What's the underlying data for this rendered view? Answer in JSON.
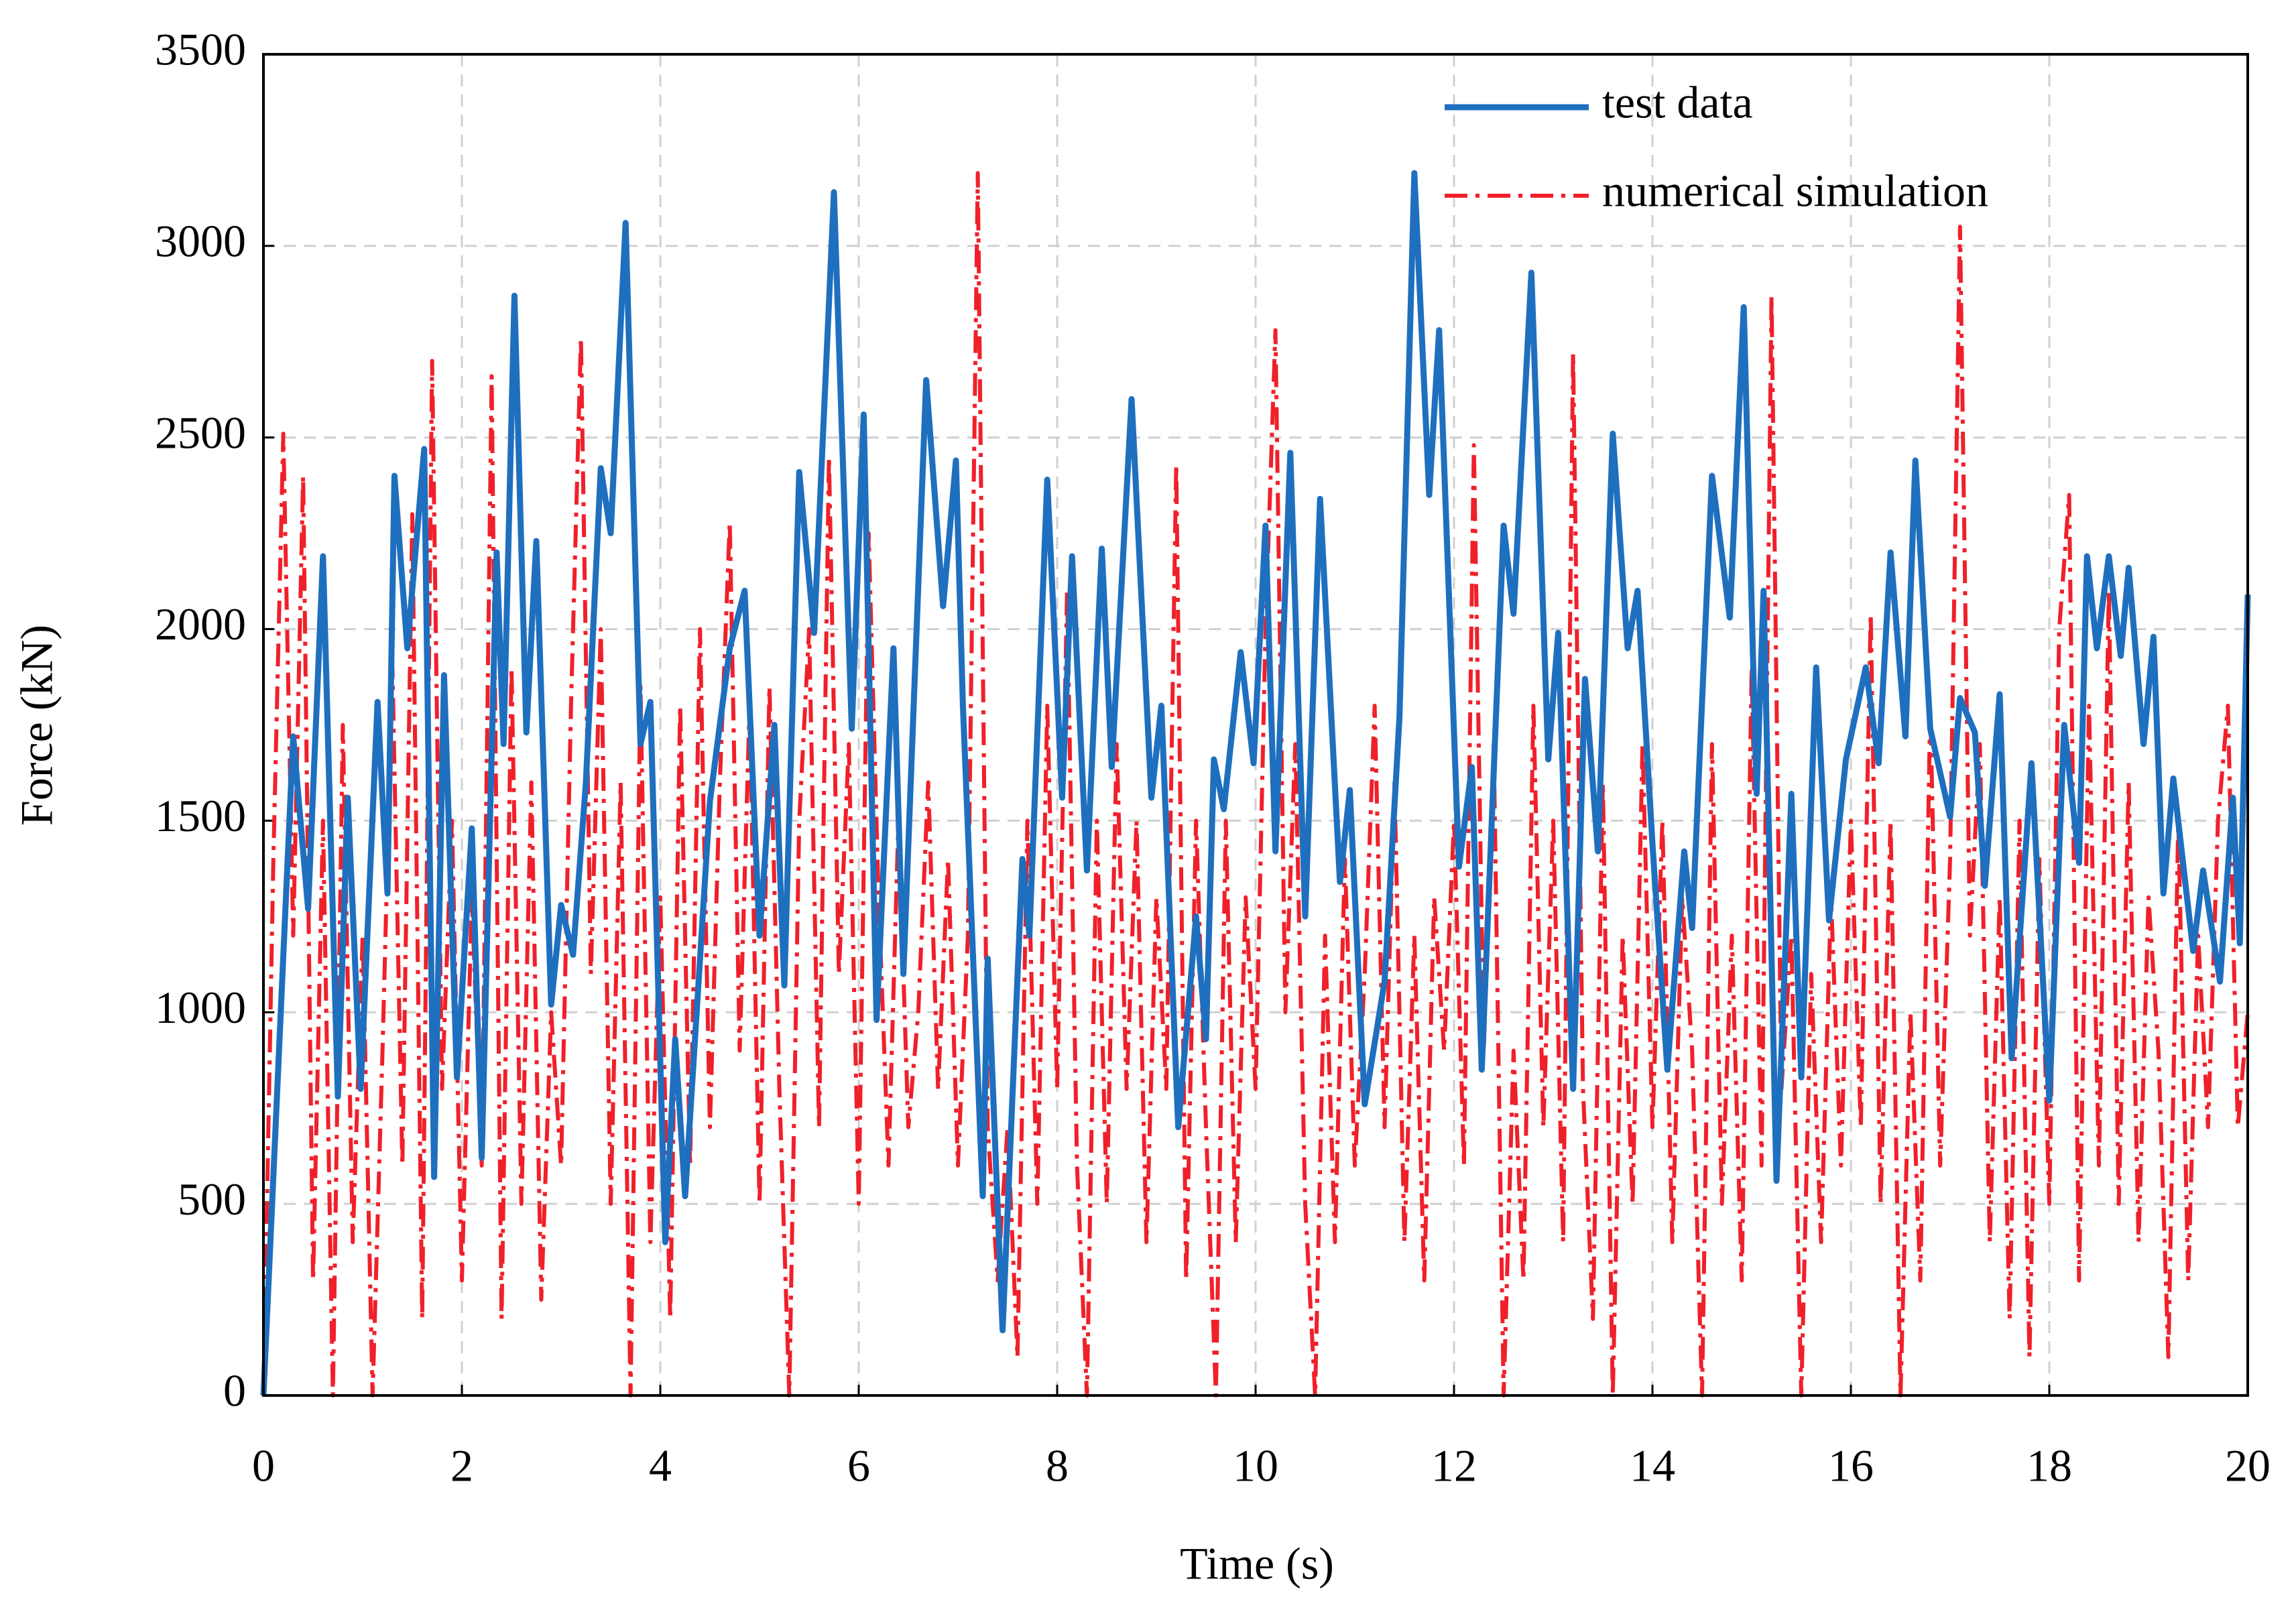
{
  "chart_data": {
    "type": "line",
    "x_label": "Time (s)",
    "y_label": "Force (kN)",
    "xlim": [
      0,
      20
    ],
    "xticks": [
      0,
      2,
      4,
      6,
      8,
      10,
      12,
      14,
      16,
      18,
      20
    ],
    "ylim": [
      0,
      3500
    ],
    "yticks": [
      0,
      500,
      1000,
      1500,
      2000,
      2500,
      3000,
      3500
    ],
    "grid": true,
    "legend": "upper right",
    "series": [
      {
        "name": "test data",
        "color": "#1f6fbf",
        "style": "solid",
        "x": [
          0,
          0.3,
          0.45,
          0.6,
          0.75,
          0.85,
          0.98,
          1.15,
          1.25,
          1.32,
          1.45,
          1.62,
          1.72,
          1.82,
          1.95,
          2.1,
          2.2,
          2.35,
          2.42,
          2.53,
          2.65,
          2.75,
          2.9,
          3.0,
          3.12,
          3.25,
          3.4,
          3.5,
          3.65,
          3.8,
          3.9,
          4.05,
          4.15,
          4.25,
          4.5,
          4.7,
          4.85,
          5.0,
          5.15,
          5.25,
          5.4,
          5.55,
          5.75,
          5.93,
          6.05,
          6.18,
          6.35,
          6.45,
          6.68,
          6.85,
          6.98,
          7.05,
          7.25,
          7.3,
          7.45,
          7.65,
          7.72,
          7.9,
          8.05,
          8.15,
          8.3,
          8.45,
          8.55,
          8.75,
          8.95,
          9.05,
          9.22,
          9.4,
          9.5,
          9.58,
          9.68,
          9.85,
          9.98,
          10.1,
          10.2,
          10.35,
          10.5,
          10.65,
          10.85,
          10.95,
          11.1,
          11.3,
          11.45,
          11.6,
          11.75,
          11.85,
          12.05,
          12.18,
          12.28,
          12.5,
          12.6,
          12.78,
          12.95,
          13.05,
          13.2,
          13.32,
          13.45,
          13.6,
          13.75,
          13.85,
          14.0,
          14.15,
          14.32,
          14.4,
          14.6,
          14.78,
          14.92,
          15.05,
          15.12,
          15.25,
          15.4,
          15.5,
          15.65,
          15.78,
          15.95,
          16.15,
          16.28,
          16.4,
          16.55,
          16.65,
          16.8,
          17.0,
          17.1,
          17.25,
          17.35,
          17.5,
          17.62,
          17.82,
          18.0,
          18.15,
          18.3,
          18.38,
          18.48,
          18.6,
          18.72,
          18.8,
          18.95,
          19.05,
          19.15,
          19.25,
          19.45,
          19.55,
          19.72,
          19.85,
          19.92,
          20
        ],
        "values": [
          0,
          1720,
          1270,
          2190,
          780,
          1560,
          800,
          1810,
          1310,
          2400,
          1950,
          2470,
          570,
          1880,
          830,
          1480,
          620,
          2200,
          1700,
          2870,
          1730,
          2230,
          1020,
          1280,
          1150,
          1600,
          2420,
          2250,
          3060,
          1700,
          1810,
          400,
          930,
          520,
          1550,
          1950,
          2100,
          1200,
          1750,
          1070,
          2410,
          1990,
          3140,
          1740,
          2560,
          980,
          1950,
          1100,
          2650,
          2060,
          2440,
          1800,
          520,
          1140,
          170,
          1400,
          1200,
          2390,
          1560,
          2190,
          1370,
          2210,
          1640,
          2600,
          1560,
          1800,
          700,
          1250,
          930,
          1660,
          1530,
          1940,
          1650,
          2270,
          1420,
          2460,
          1250,
          2340,
          1340,
          1580,
          760,
          1080,
          1770,
          3190,
          2350,
          2780,
          1380,
          1640,
          850,
          2270,
          2040,
          2930,
          1660,
          1990,
          800,
          1870,
          1420,
          2510,
          1950,
          2100,
          1440,
          850,
          1420,
          1220,
          2400,
          2030,
          2840,
          1570,
          2100,
          560,
          1570,
          830,
          1900,
          1240,
          1660,
          1900,
          1650,
          2200,
          1720,
          2440,
          1740,
          1510,
          1820,
          1730,
          1330,
          1830,
          880,
          1650,
          770,
          1750,
          1390,
          2190,
          1950,
          2190,
          1930,
          2160,
          1700,
          1980,
          1310,
          1610,
          1160,
          1370,
          1080,
          1560,
          1180,
          2090
        ]
      },
      {
        "name": "numerical simulation",
        "color": "#f0202a",
        "style": "dashdot",
        "x": [
          0,
          0.1,
          0.2,
          0.3,
          0.4,
          0.5,
          0.6,
          0.7,
          0.8,
          0.9,
          1,
          1.1,
          1.2,
          1.3,
          1.4,
          1.5,
          1.6,
          1.7,
          1.8,
          1.9,
          2,
          2.1,
          2.2,
          2.3,
          2.4,
          2.5,
          2.6,
          2.7,
          2.8,
          2.9,
          3,
          3.1,
          3.2,
          3.3,
          3.4,
          3.5,
          3.6,
          3.7,
          3.8,
          3.9,
          4,
          4.1,
          4.2,
          4.3,
          4.4,
          4.5,
          4.6,
          4.7,
          4.8,
          4.9,
          5,
          5.1,
          5.2,
          5.3,
          5.4,
          5.5,
          5.6,
          5.7,
          5.8,
          5.9,
          6,
          6.1,
          6.2,
          6.3,
          6.4,
          6.5,
          6.6,
          6.7,
          6.8,
          6.9,
          7,
          7.1,
          7.2,
          7.3,
          7.4,
          7.5,
          7.6,
          7.7,
          7.8,
          7.9,
          8,
          8.1,
          8.2,
          8.3,
          8.4,
          8.5,
          8.6,
          8.7,
          8.8,
          8.9,
          9,
          9.1,
          9.2,
          9.3,
          9.4,
          9.5,
          9.6,
          9.7,
          9.8,
          9.9,
          10,
          10.1,
          10.2,
          10.3,
          10.4,
          10.5,
          10.6,
          10.7,
          10.8,
          10.9,
          11,
          11.1,
          11.2,
          11.3,
          11.4,
          11.5,
          11.6,
          11.7,
          11.8,
          11.9,
          12,
          12.1,
          12.2,
          12.3,
          12.4,
          12.5,
          12.6,
          12.7,
          12.8,
          12.9,
          13,
          13.1,
          13.2,
          13.3,
          13.4,
          13.5,
          13.6,
          13.7,
          13.8,
          13.9,
          14,
          14.1,
          14.2,
          14.3,
          14.4,
          14.5,
          14.6,
          14.7,
          14.8,
          14.9,
          15,
          15.1,
          15.2,
          15.3,
          15.4,
          15.5,
          15.6,
          15.7,
          15.8,
          15.9,
          16,
          16.1,
          16.2,
          16.3,
          16.4,
          16.5,
          16.6,
          16.7,
          16.8,
          16.9,
          17,
          17.1,
          17.2,
          17.3,
          17.4,
          17.5,
          17.6,
          17.7,
          17.8,
          17.9,
          18,
          18.1,
          18.2,
          18.3,
          18.4,
          18.5,
          18.6,
          18.7,
          18.8,
          18.9,
          19,
          19.1,
          19.2,
          19.3,
          19.4,
          19.5,
          19.6,
          19.7,
          19.8,
          19.9,
          20
        ],
        "values": [
          0,
          1400,
          2510,
          1200,
          2400,
          300,
          1500,
          0,
          1750,
          400,
          1200,
          0,
          900,
          1900,
          600,
          2300,
          200,
          2700,
          800,
          1500,
          300,
          1300,
          600,
          2660,
          200,
          1900,
          500,
          1600,
          250,
          1000,
          600,
          1800,
          2760,
          1100,
          2000,
          500,
          1600,
          0,
          1850,
          400,
          1300,
          200,
          1800,
          600,
          2000,
          700,
          1600,
          2280,
          900,
          1800,
          500,
          1850,
          800,
          0,
          1500,
          2000,
          700,
          2450,
          1100,
          1700,
          500,
          2250,
          1300,
          600,
          1500,
          700,
          1000,
          1600,
          800,
          1400,
          600,
          1200,
          3190,
          700,
          300,
          700,
          100,
          1500,
          500,
          1800,
          800,
          2100,
          600,
          0,
          1500,
          500,
          1700,
          800,
          1500,
          400,
          1300,
          800,
          2430,
          300,
          1500,
          700,
          0,
          1500,
          400,
          1300,
          800,
          2000,
          2780,
          1000,
          1700,
          500,
          0,
          1200,
          400,
          1400,
          600,
          1100,
          1800,
          700,
          1600,
          400,
          1200,
          300,
          1300,
          900,
          1500,
          600,
          2480,
          900,
          1700,
          0,
          900,
          300,
          1800,
          700,
          1500,
          400,
          2720,
          800,
          200,
          1600,
          0,
          1200,
          500,
          1700,
          700,
          1500,
          400,
          1300,
          900,
          0,
          1700,
          500,
          1200,
          300,
          1900,
          600,
          2870,
          800,
          1200,
          0,
          1100,
          400,
          1300,
          600,
          1500,
          700,
          2040,
          500,
          1500,
          0,
          1000,
          300,
          1800,
          600,
          1400,
          3050,
          1200,
          1700,
          400,
          1300,
          200,
          1500,
          100,
          1400,
          500,
          2000,
          2350,
          300,
          1800,
          600,
          2100,
          500,
          1600,
          400,
          1300,
          900,
          100,
          1500,
          300,
          1200,
          700,
          1500,
          1800,
          700,
          1000
        ]
      }
    ]
  }
}
